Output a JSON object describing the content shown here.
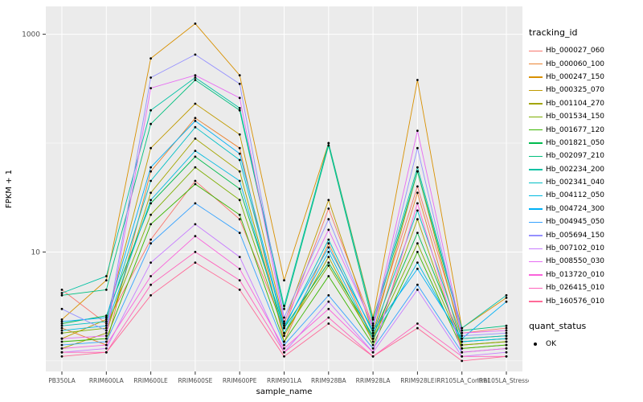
{
  "figure": {
    "background": "#FFFFFF",
    "panel_background": "#EBEBEB",
    "grid_major_color": "#FFFFFF",
    "grid_minor_color": "#F5F5F5",
    "point_color": "#000000",
    "axis_text_color": "#4D4D4D",
    "axis_title_color": "#000000",
    "tick_mark_color": "#333333"
  },
  "chart_data": {
    "type": "line",
    "title": "",
    "xlabel": "sample_name",
    "ylabel": "FPKM + 1",
    "y_scale": "log10",
    "ylim": [
      0.8,
      1800
    ],
    "grid": true,
    "y_major_ticks": [
      {
        "value": 1000,
        "label": "1000"
      },
      {
        "value": 10,
        "label": "10"
      }
    ],
    "y_minor_ticks": [
      1,
      100
    ],
    "categories": [
      "PB350LA",
      "RRIM600LA",
      "RRIM600LE",
      "RRIM600SE",
      "RRIM600PE",
      "RRIM901LA",
      "RRIM928BA",
      "RRIM928LA",
      "RRIM928LE",
      "IRR105LA_Control",
      "IRR105LA_Stressed"
    ],
    "legend": {
      "title": "tracking_id",
      "position": "right"
    },
    "quant_legend": {
      "title": "quant_status",
      "items": [
        {
          "label": "OK"
        }
      ]
    },
    "series": [
      {
        "name": "Hb_000027_060",
        "color": "#F8766D",
        "values": [
          4.5,
          2.2,
          13,
          45,
          20,
          2.0,
          25,
          2.1,
          40,
          1.8,
          2.0
        ]
      },
      {
        "name": "Hb_000060_100",
        "color": "#EA8331",
        "values": [
          2.0,
          1.4,
          55,
          170,
          90,
          1.5,
          12,
          1.6,
          35,
          1.4,
          1.5
        ]
      },
      {
        "name": "Hb_000247_150",
        "color": "#D89000",
        "values": [
          2.4,
          5.5,
          600,
          1250,
          420,
          5.5,
          100,
          2.5,
          380,
          2.0,
          3.8
        ]
      },
      {
        "name": "Hb_000325_070",
        "color": "#C09B00",
        "values": [
          1.6,
          2.4,
          90,
          230,
          120,
          2.2,
          30,
          1.8,
          55,
          1.6,
          1.7
        ]
      },
      {
        "name": "Hb_001104_270",
        "color": "#A3A500",
        "values": [
          1.3,
          1.8,
          35,
          110,
          55,
          1.7,
          9,
          1.5,
          20,
          1.3,
          1.4
        ]
      },
      {
        "name": "Hb_001534_150",
        "color": "#7CAE00",
        "values": [
          1.8,
          2.0,
          22,
          60,
          30,
          1.8,
          7.5,
          1.6,
          12,
          1.4,
          1.5
        ]
      },
      {
        "name": "Hb_001677_120",
        "color": "#39B600",
        "values": [
          1.5,
          1.6,
          18,
          42,
          22,
          1.5,
          6,
          1.4,
          10,
          1.3,
          1.4
        ]
      },
      {
        "name": "Hb_001821_050",
        "color": "#00BB4E",
        "values": [
          2.2,
          2.6,
          28,
          75,
          38,
          2.0,
          8,
          1.7,
          15,
          1.5,
          1.6
        ]
      },
      {
        "name": "Hb_002097_210",
        "color": "#00BF7D",
        "values": [
          4.0,
          4.5,
          150,
          380,
          200,
          3.0,
          95,
          2.2,
          55,
          1.9,
          2.1
        ]
      },
      {
        "name": "Hb_002234_200",
        "color": "#00C1A3",
        "values": [
          4.2,
          6.0,
          200,
          400,
          210,
          3.2,
          100,
          2.4,
          60,
          2.0,
          4.0
        ]
      },
      {
        "name": "Hb_002341_040",
        "color": "#00BFC4",
        "values": [
          2.1,
          2.3,
          45,
          140,
          70,
          2.0,
          13,
          1.8,
          24,
          1.6,
          1.7
        ]
      },
      {
        "name": "Hb_004112_050",
        "color": "#00BAE0",
        "values": [
          1.9,
          2.1,
          30,
          85,
          45,
          1.8,
          10,
          1.6,
          8,
          1.5,
          1.6
        ]
      },
      {
        "name": "Hb_004724_300",
        "color": "#00B0F6",
        "values": [
          2.3,
          2.5,
          60,
          160,
          80,
          2.1,
          11,
          1.9,
          7,
          1.6,
          3.5
        ]
      },
      {
        "name": "Hb_004945_050",
        "color": "#35A2FF",
        "values": [
          1.4,
          1.5,
          12,
          28,
          15,
          1.4,
          4,
          1.3,
          5,
          1.2,
          1.3
        ]
      },
      {
        "name": "Hb_005694_150",
        "color": "#9590FF",
        "values": [
          3.0,
          1.9,
          400,
          650,
          350,
          2.5,
          20,
          2.0,
          90,
          1.7,
          1.8
        ]
      },
      {
        "name": "Hb_007102_010",
        "color": "#C77CFF",
        "values": [
          1.2,
          1.3,
          8,
          18,
          9,
          1.2,
          3.5,
          1.2,
          4.5,
          1.1,
          1.2
        ]
      },
      {
        "name": "Hb_008550_030",
        "color": "#E76BF3",
        "values": [
          1.6,
          1.7,
          320,
          420,
          260,
          2.3,
          16,
          2.1,
          130,
          1.8,
          1.9
        ]
      },
      {
        "name": "Hb_013720_010",
        "color": "#FA62DB",
        "values": [
          1.3,
          1.4,
          6,
          14,
          7,
          1.3,
          3,
          1.2,
          28,
          1.2,
          1.3
        ]
      },
      {
        "name": "Hb_026415_010",
        "color": "#FF62BC",
        "values": [
          1.2,
          1.2,
          5,
          10,
          5.5,
          1.2,
          2.5,
          1.1,
          2.2,
          1.1,
          1.1
        ]
      },
      {
        "name": "Hb_160576_010",
        "color": "#FF6A98",
        "values": [
          1.1,
          1.2,
          4,
          8,
          4.5,
          1.1,
          2.2,
          1.1,
          2.0,
          1.0,
          1.1
        ]
      }
    ]
  }
}
